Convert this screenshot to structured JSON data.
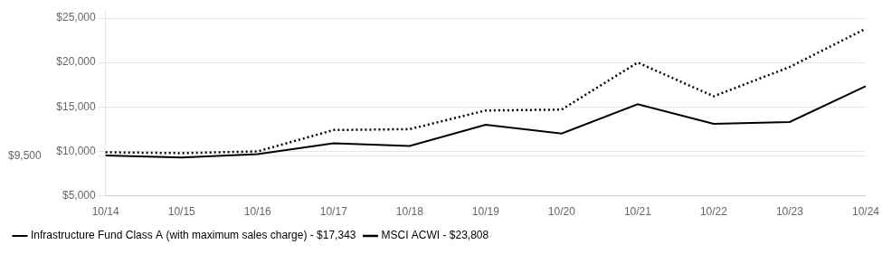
{
  "chart_data": {
    "type": "line",
    "categories": [
      "10/14",
      "10/15",
      "10/16",
      "10/17",
      "10/18",
      "10/19",
      "10/20",
      "10/21",
      "10/22",
      "10/23",
      "10/24"
    ],
    "series": [
      {
        "name": "Infrastructure Fund Class A (with maximum sales charge) - $17,343",
        "color": "#000000",
        "line_style": "solid",
        "values": [
          9550,
          9300,
          9700,
          10900,
          10600,
          13000,
          12000,
          15300,
          13100,
          13300,
          17343
        ]
      },
      {
        "name": "MSCI ACWI - $23,808",
        "color": "#000000",
        "line_style": "dotted",
        "values": [
          9900,
          9800,
          10000,
          12400,
          12500,
          14600,
          14700,
          20000,
          16200,
          19500,
          23808
        ]
      }
    ],
    "ylim": [
      5000,
      26000
    ],
    "yticks": [
      {
        "value": 5000,
        "label": "$5,000"
      },
      {
        "value": 9500,
        "label": "$9,500"
      },
      {
        "value": 10000,
        "label": "$10,000"
      },
      {
        "value": 15000,
        "label": "$15,000"
      },
      {
        "value": 20000,
        "label": "$20,000"
      },
      {
        "value": 25000,
        "label": "$25,000"
      }
    ],
    "grid": true,
    "legend": "bottom"
  }
}
